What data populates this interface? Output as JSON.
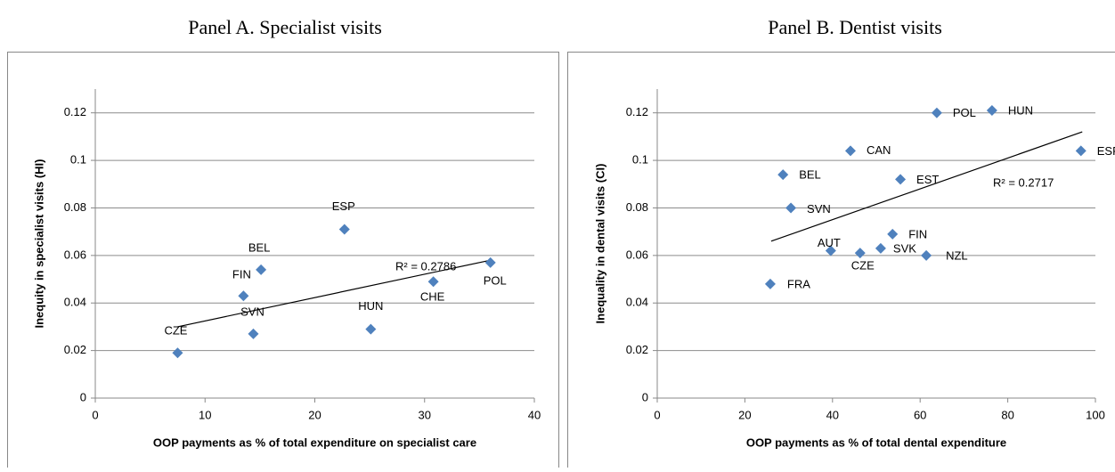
{
  "chart_data": [
    {
      "type": "scatter",
      "title": "Panel A. Specialist visits",
      "x_label": "OOP payments as % of total expenditure on specialist care",
      "y_label": "Inequity in specialist  visits (HI)",
      "color": "#4f81bd",
      "grid": true,
      "labels": [
        "CZE",
        "FIN",
        "BEL",
        "SVN",
        "ESP",
        "HUN",
        "CHE",
        "POL"
      ],
      "x": [
        7.5,
        13.5,
        15.1,
        14.4,
        22.7,
        25.1,
        30.8,
        36.0
      ],
      "y": [
        0.019,
        0.043,
        0.054,
        0.027,
        0.071,
        0.029,
        0.049,
        0.057
      ],
      "xlim": [
        0,
        40
      ],
      "xticks": [
        0,
        10,
        20,
        30,
        40
      ],
      "ylim": [
        0,
        0.13
      ],
      "yticks": [
        0,
        0.02,
        0.04,
        0.06,
        0.08,
        0.1,
        0.12
      ],
      "trend": {
        "x": [
          7.5,
          36
        ],
        "y": [
          0.03,
          0.058
        ]
      },
      "annotation": "R² = 0.2786"
    },
    {
      "type": "scatter",
      "title": "Panel B. Dentist visits",
      "x_label": "OOP payments as % of total dental expenditure",
      "y_label": "Inequality in dental visits (CI)",
      "color": "#4f81bd",
      "grid": true,
      "labels": [
        "FRA",
        "AUT",
        "CZE",
        "SVK",
        "FIN",
        "NZL",
        "SVN",
        "BEL",
        "CAN",
        "EST",
        "POL",
        "HUN",
        "ESP"
      ],
      "x": [
        25.8,
        39.6,
        46.3,
        51.0,
        53.7,
        61.4,
        30.5,
        28.7,
        44.1,
        55.5,
        63.8,
        76.4,
        96.7
      ],
      "y": [
        0.048,
        0.062,
        0.061,
        0.063,
        0.069,
        0.06,
        0.08,
        0.094,
        0.104,
        0.092,
        0.12,
        0.121,
        0.104
      ],
      "xlim": [
        0,
        100
      ],
      "xticks": [
        0,
        20,
        40,
        60,
        80,
        100
      ],
      "ylim": [
        0,
        0.13
      ],
      "yticks": [
        0,
        0.02,
        0.04,
        0.06,
        0.08,
        0.1,
        0.12
      ],
      "trend": {
        "x": [
          26,
          97
        ],
        "y": [
          0.066,
          0.112
        ]
      },
      "annotation": "R² = 0.2717"
    }
  ]
}
